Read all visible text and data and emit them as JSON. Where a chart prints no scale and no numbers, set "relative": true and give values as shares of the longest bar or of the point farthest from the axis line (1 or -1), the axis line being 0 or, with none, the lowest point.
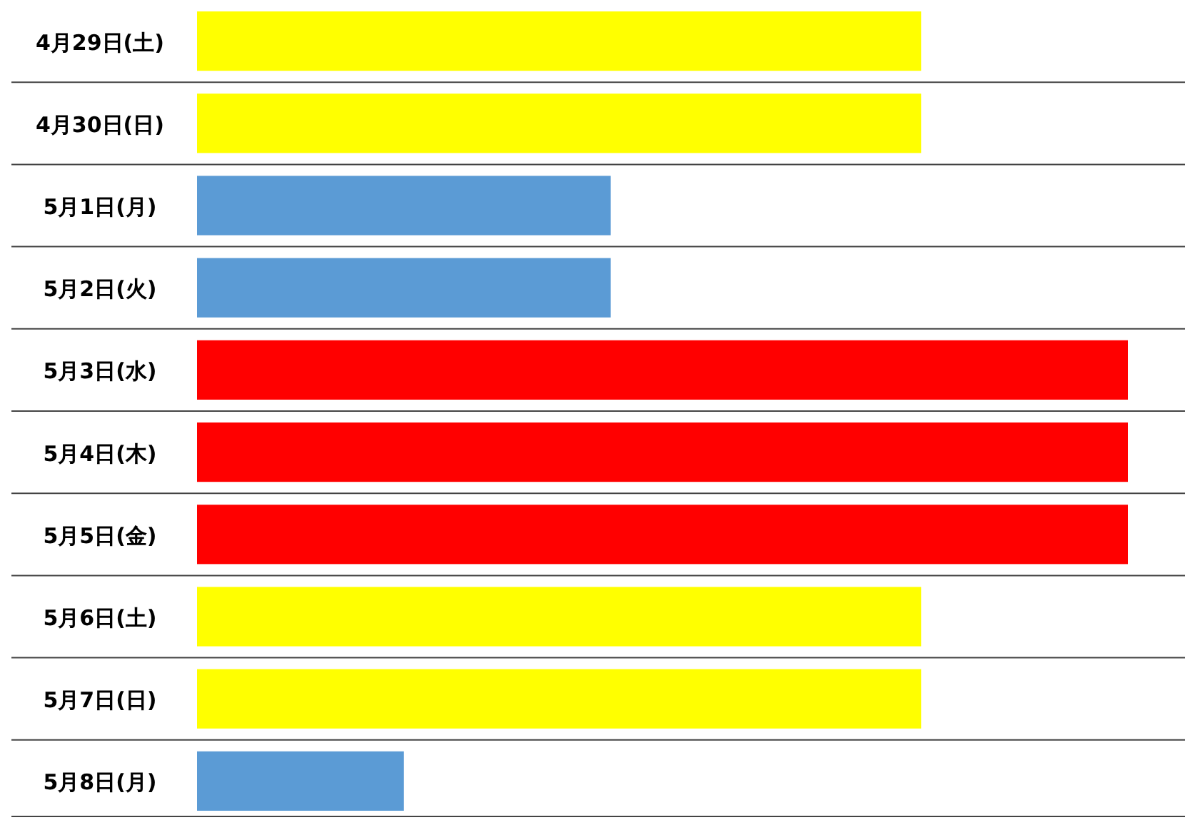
{
  "chart_data": {
    "type": "bar",
    "orientation": "horizontal",
    "relative": true,
    "categories": [
      "4月29日(土)",
      "4月30日(日)",
      "5月1日(月)",
      "5月2日(火)",
      "5月3日(水)",
      "5月4日(木)",
      "5月5日(金)",
      "5月6日(土)",
      "5月7日(日)",
      "5月8日(月)"
    ],
    "values": [
      0.7778,
      0.7778,
      0.4444,
      0.4444,
      1,
      1,
      1,
      0.7778,
      0.7778,
      0.2222
    ],
    "colors": [
      "#ffff00",
      "#ffff00",
      "#5b9bd5",
      "#5b9bd5",
      "#ff0000",
      "#ff0000",
      "#ff0000",
      "#ffff00",
      "#ffff00",
      "#5b9bd5"
    ]
  }
}
